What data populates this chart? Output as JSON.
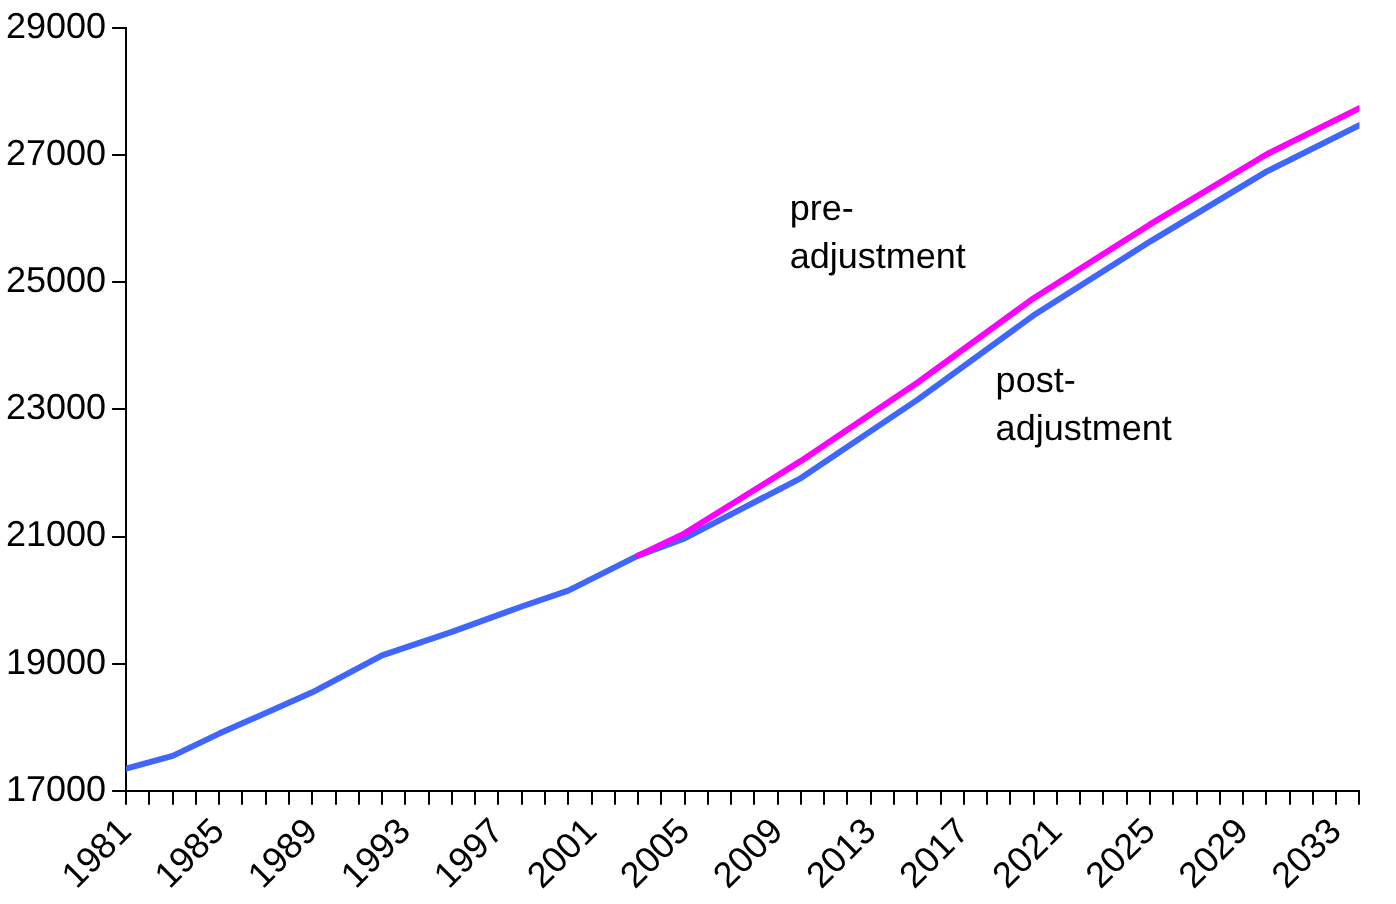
{
  "chart_data": {
    "type": "line",
    "xlim": [
      1981,
      2034
    ],
    "ylim": [
      17000,
      29000
    ],
    "yticks": [
      17000,
      19000,
      21000,
      23000,
      25000,
      27000,
      29000
    ],
    "xticks": [
      1981,
      {
        "value": 1982,
        "label": null
      },
      {
        "value": 1983,
        "label": null
      },
      {
        "value": 1984,
        "label": null
      },
      1985,
      {
        "value": 1986,
        "label": null
      },
      {
        "value": 1987,
        "label": null
      },
      {
        "value": 1988,
        "label": null
      },
      1989,
      {
        "value": 1990,
        "label": null
      },
      {
        "value": 1991,
        "label": null
      },
      {
        "value": 1992,
        "label": null
      },
      1993,
      {
        "value": 1994,
        "label": null
      },
      {
        "value": 1995,
        "label": null
      },
      {
        "value": 1996,
        "label": null
      },
      1997,
      {
        "value": 1998,
        "label": null
      },
      {
        "value": 1999,
        "label": null
      },
      {
        "value": 2000,
        "label": null
      },
      2001,
      {
        "value": 2002,
        "label": null
      },
      {
        "value": 2003,
        "label": null
      },
      {
        "value": 2004,
        "label": null
      },
      2005,
      {
        "value": 2006,
        "label": null
      },
      {
        "value": 2007,
        "label": null
      },
      {
        "value": 2008,
        "label": null
      },
      2009,
      {
        "value": 2010,
        "label": null
      },
      {
        "value": 2011,
        "label": null
      },
      {
        "value": 2012,
        "label": null
      },
      2013,
      {
        "value": 2014,
        "label": null
      },
      {
        "value": 2015,
        "label": null
      },
      {
        "value": 2016,
        "label": null
      },
      2017,
      {
        "value": 2018,
        "label": null
      },
      {
        "value": 2019,
        "label": null
      },
      {
        "value": 2020,
        "label": null
      },
      2021,
      {
        "value": 2022,
        "label": null
      },
      {
        "value": 2023,
        "label": null
      },
      {
        "value": 2024,
        "label": null
      },
      2025,
      {
        "value": 2026,
        "label": null
      },
      {
        "value": 2027,
        "label": null
      },
      {
        "value": 2028,
        "label": null
      },
      2029,
      {
        "value": 2030,
        "label": null
      },
      {
        "value": 2031,
        "label": null
      },
      {
        "value": 2032,
        "label": null
      },
      2033,
      {
        "value": 2034,
        "label": null
      }
    ],
    "grid": false,
    "legend": false,
    "marker": "none",
    "line_style": "solid",
    "series": [
      {
        "name": "pre-adjustment",
        "color": "#ff00ff",
        "x": [
          2003,
          2005,
          2010,
          2015,
          2020,
          2025,
          2030,
          2034
        ],
        "values": [
          20700,
          21050,
          22190,
          23420,
          24750,
          25910,
          27010,
          27740
        ]
      },
      {
        "name": "post-adjustment",
        "color": "#3f66ff",
        "x": [
          1981,
          1983,
          1985,
          1989,
          1992,
          1995,
          1998,
          2000,
          2003,
          2005,
          2010,
          2015,
          2020,
          2025,
          2030,
          2034
        ],
        "values": [
          17350,
          17550,
          17900,
          18550,
          19130,
          19500,
          19900,
          20150,
          20700,
          20970,
          21920,
          23150,
          24480,
          25640,
          26740,
          27470
        ]
      }
    ]
  }
}
